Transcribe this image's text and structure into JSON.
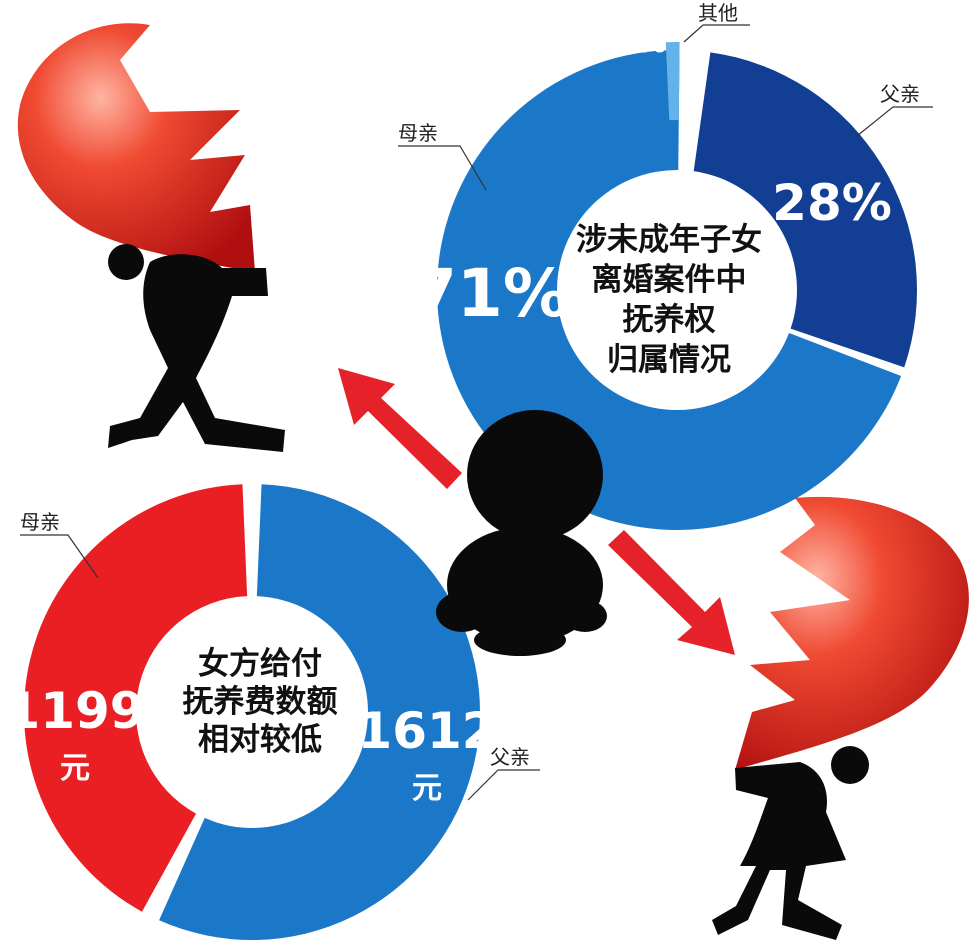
{
  "chart_data": [
    {
      "type": "pie",
      "title": [
        "涉未成年子女",
        "离婚案件中",
        "抚养权",
        "归属情况"
      ],
      "slices": [
        {
          "label": "母亲",
          "value": 71,
          "value_text": "71%",
          "color": "#1b77c8"
        },
        {
          "label": "父亲",
          "value": 28,
          "value_text": "28%",
          "color": "#123f93"
        },
        {
          "label": "其他",
          "value": 1,
          "value_text": "1%",
          "color": "#64b2ea"
        }
      ]
    },
    {
      "type": "pie",
      "title": [
        "女方给付",
        "抚养费数额",
        "相对较低"
      ],
      "unit": "元",
      "slices": [
        {
          "label": "母亲",
          "value": 1199,
          "value_text": "1199",
          "color": "#e91f24"
        },
        {
          "label": "父亲",
          "value": 1612,
          "value_text": "1612",
          "color": "#1b77c8"
        }
      ]
    }
  ],
  "colors": {
    "arrow": "#e52229",
    "heart": "#e0231c",
    "silhouette": "#0a0a0a"
  }
}
